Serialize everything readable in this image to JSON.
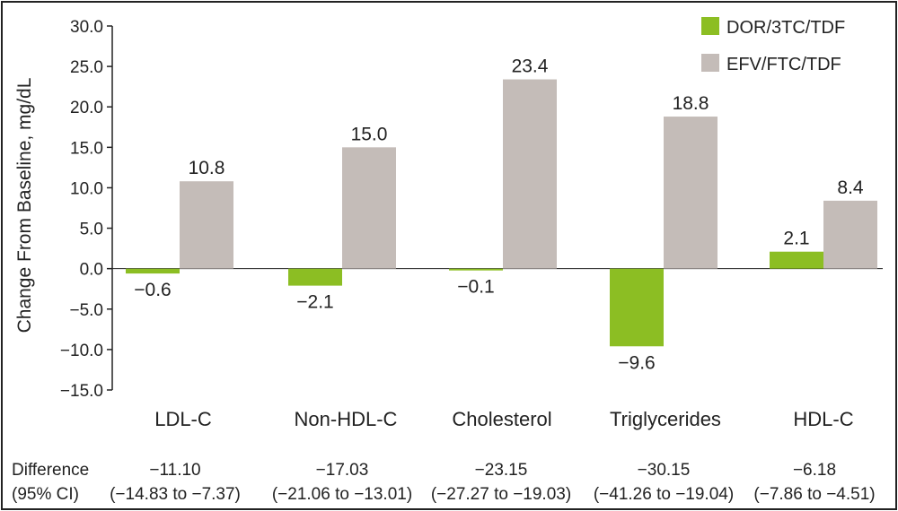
{
  "chart_data": {
    "type": "bar",
    "title": "",
    "ylabel": "Change From Baseline, mg/dL",
    "xlabel": "",
    "ylim": [
      -15.0,
      30.0
    ],
    "yticks": [
      "30.0",
      "25.0",
      "20.0",
      "15.0",
      "10.0",
      "5.0",
      "0.0",
      "-5.0",
      "-10.0",
      "-15.0"
    ],
    "ytick_values": [
      30,
      25,
      20,
      15,
      10,
      5,
      0,
      -5,
      -10,
      -15
    ],
    "categories": [
      "LDL-C",
      "Non-HDL-C",
      "Cholesterol",
      "Triglycerides",
      "HDL-C"
    ],
    "series": [
      {
        "name": "DOR/3TC/TDF",
        "color": "#8cbe23",
        "values": [
          -0.6,
          -2.1,
          -0.1,
          -9.6,
          2.1
        ],
        "labels": [
          "−0.6",
          "−2.1",
          "−0.1",
          "−9.6",
          "2.1"
        ]
      },
      {
        "name": "EFV/FTC/TDF",
        "color": "#c4bcb8",
        "values": [
          10.8,
          15.0,
          23.4,
          18.8,
          8.4
        ],
        "labels": [
          "10.8",
          "15.0",
          "23.4",
          "18.8",
          "8.4"
        ]
      }
    ],
    "legend_position": "top-right",
    "footer": {
      "label_line1": "Difference",
      "label_line2": "(95% CI)",
      "values": [
        "−11.10",
        "−17.03",
        "−23.15",
        "−30.15",
        "−6.18"
      ],
      "ci": [
        "(−14.83 to −7.37)",
        "(−21.06 to −13.01)",
        "(−27.27 to −19.03)",
        "(−41.26 to −19.04)",
        "(−7.86 to −4.51)"
      ]
    }
  }
}
